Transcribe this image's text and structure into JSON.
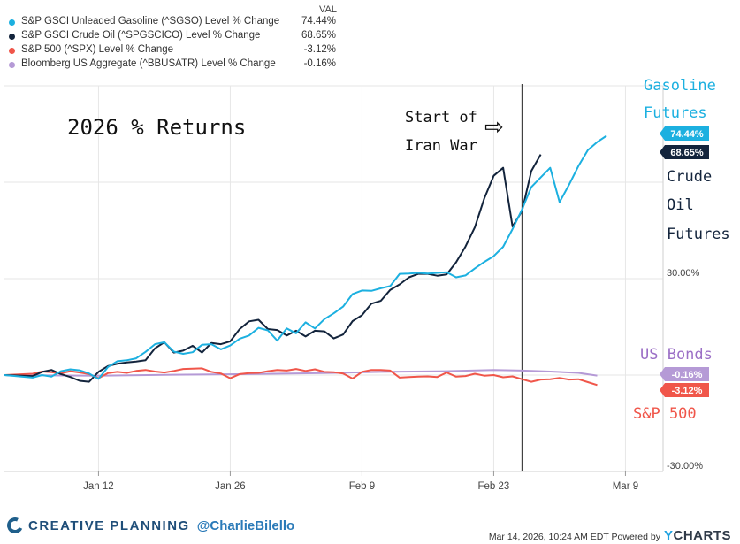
{
  "legend": {
    "header": "VAL",
    "items": [
      {
        "name": "S&P GSCI Unleaded Gasoline (^SGSO) Level % Change",
        "value": "74.44%",
        "color": "#1cb0e0"
      },
      {
        "name": "S&P GSCI Crude Oil (^SPGSCICO) Level % Change",
        "value": "68.65%",
        "color": "#13243c"
      },
      {
        "name": "S&P 500 (^SPX) Level % Change",
        "value": "-3.12%",
        "color": "#f0564a"
      },
      {
        "name": "Bloomberg US Aggregate (^BBUSATR) Level % Change",
        "value": "-0.16%",
        "color": "#b59ad6"
      }
    ]
  },
  "annotations": {
    "title": "2026 % Returns",
    "war_line1": "Start of",
    "war_line2": "Iran War",
    "arrow": "⇨",
    "gas_line1": "Gasoline",
    "gas_line2": "Futures",
    "crude_line1": "Crude",
    "crude_line2": "Oil",
    "crude_line3": "Futures",
    "bonds": "US Bonds",
    "sp": "S&P 500"
  },
  "footer": {
    "brand": "CREATIVE PLANNING",
    "handle": "@CharlieBilello",
    "source": "Mar 14, 2026, 10:24 AM EDT Powered by",
    "ycharts_y": "Y",
    "ycharts_rest": "CHARTS"
  },
  "chart_data": {
    "type": "line",
    "x_start": "2026-01-02",
    "x_end": "2026-03-13",
    "xlim": [
      "2026-01-02",
      "2026-03-13"
    ],
    "ylim": [
      -30,
      90
    ],
    "yticks": [
      -30,
      30
    ],
    "ytick_labels": [
      "-30.00%",
      "30.00%"
    ],
    "y_unit": "%",
    "xtick_labels": [
      "Jan 12",
      "Jan 26",
      "Feb 9",
      "Feb 23",
      "Mar 9"
    ],
    "xtick_dates": [
      "2026-01-12",
      "2026-01-26",
      "2026-02-09",
      "2026-02-23",
      "2026-03-09"
    ],
    "grid": true,
    "event_marker": {
      "date": "2026-02-26",
      "label": "Start of Iran War"
    },
    "series": [
      {
        "name": "S&P GSCI Unleaded Gasoline (^SGSO) Level % Change",
        "color": "#1cb0e0",
        "last_label": "74.44%",
        "last": 74.44,
        "points": [
          [
            "2026-01-02",
            0
          ],
          [
            "2026-01-05",
            -0.8
          ],
          [
            "2026-01-06",
            0
          ],
          [
            "2026-01-07",
            -0.5
          ],
          [
            "2026-01-08",
            1.2
          ],
          [
            "2026-01-09",
            1.8
          ],
          [
            "2026-01-10",
            1.5
          ],
          [
            "2026-01-11",
            0.5
          ],
          [
            "2026-01-12",
            -1.2
          ],
          [
            "2026-01-13",
            2.5
          ],
          [
            "2026-01-14",
            4.3
          ],
          [
            "2026-01-15",
            4.6
          ],
          [
            "2026-01-16",
            5.2
          ],
          [
            "2026-01-17",
            7.2
          ],
          [
            "2026-01-18",
            9.6
          ],
          [
            "2026-01-19",
            10.2
          ],
          [
            "2026-01-20",
            7.3
          ],
          [
            "2026-01-21",
            6.6
          ],
          [
            "2026-01-22",
            7.1
          ],
          [
            "2026-01-23",
            9.4
          ],
          [
            "2026-01-24",
            9.6
          ],
          [
            "2026-01-25",
            8.0
          ],
          [
            "2026-01-26",
            9.2
          ],
          [
            "2026-01-27",
            11.3
          ],
          [
            "2026-01-28",
            12.3
          ],
          [
            "2026-01-29",
            14.7
          ],
          [
            "2026-01-30",
            13.9
          ],
          [
            "2026-01-31",
            10.7
          ],
          [
            "2026-02-01",
            14.5
          ],
          [
            "2026-02-02",
            13.0
          ],
          [
            "2026-02-03",
            16.4
          ],
          [
            "2026-02-04",
            14.5
          ],
          [
            "2026-02-05",
            17.4
          ],
          [
            "2026-02-06",
            19.2
          ],
          [
            "2026-02-07",
            21.3
          ],
          [
            "2026-02-08",
            25.2
          ],
          [
            "2026-02-09",
            26.3
          ],
          [
            "2026-02-10",
            26.2
          ],
          [
            "2026-02-11",
            27.0
          ],
          [
            "2026-02-12",
            27.7
          ],
          [
            "2026-02-13",
            31.5
          ],
          [
            "2026-02-14",
            31.6
          ],
          [
            "2026-02-15",
            31.8
          ],
          [
            "2026-02-16",
            31.6
          ],
          [
            "2026-02-17",
            31.8
          ],
          [
            "2026-02-18",
            32.0
          ],
          [
            "2026-02-19",
            30.4
          ],
          [
            "2026-02-20",
            31.0
          ],
          [
            "2026-02-21",
            33.2
          ],
          [
            "2026-02-22",
            35.2
          ],
          [
            "2026-02-23",
            37.0
          ],
          [
            "2026-02-24",
            39.9
          ],
          [
            "2026-02-25",
            45.4
          ],
          [
            "2026-02-26",
            51.5
          ],
          [
            "2026-02-27",
            58.5
          ],
          [
            "2026-02-28",
            61.5
          ],
          [
            "2026-03-01",
            64.5
          ],
          [
            "2026-03-02",
            53.8
          ],
          [
            "2026-03-03",
            59.2
          ],
          [
            "2026-03-04",
            65.0
          ],
          [
            "2026-03-05",
            70.0
          ],
          [
            "2026-03-06",
            72.5
          ],
          [
            "2026-03-07",
            74.44
          ]
        ]
      },
      {
        "name": "S&P GSCI Crude Oil (^SPGSCICO) Level % Change",
        "color": "#13243c",
        "last_label": "68.65%",
        "last": 68.65,
        "points": [
          [
            "2026-01-02",
            0
          ],
          [
            "2026-01-05",
            -0.3
          ],
          [
            "2026-01-06",
            1.0
          ],
          [
            "2026-01-07",
            1.6
          ],
          [
            "2026-01-08",
            0.3
          ],
          [
            "2026-01-09",
            -0.6
          ],
          [
            "2026-01-10",
            -1.8
          ],
          [
            "2026-01-11",
            -2.1
          ],
          [
            "2026-01-12",
            1.0
          ],
          [
            "2026-01-13",
            2.8
          ],
          [
            "2026-01-14",
            3.5
          ],
          [
            "2026-01-15",
            3.9
          ],
          [
            "2026-01-16",
            4.2
          ],
          [
            "2026-01-17",
            4.6
          ],
          [
            "2026-01-18",
            8.3
          ],
          [
            "2026-01-19",
            10.2
          ],
          [
            "2026-01-20",
            7.0
          ],
          [
            "2026-01-21",
            7.6
          ],
          [
            "2026-01-22",
            9.1
          ],
          [
            "2026-01-23",
            7.0
          ],
          [
            "2026-01-24",
            10.0
          ],
          [
            "2026-01-25",
            9.6
          ],
          [
            "2026-01-26",
            10.5
          ],
          [
            "2026-01-27",
            14.3
          ],
          [
            "2026-01-28",
            16.7
          ],
          [
            "2026-01-29",
            17.2
          ],
          [
            "2026-01-30",
            14.3
          ],
          [
            "2026-01-31",
            14.0
          ],
          [
            "2026-02-01",
            12.3
          ],
          [
            "2026-02-02",
            13.8
          ],
          [
            "2026-02-03",
            12.0
          ],
          [
            "2026-02-04",
            13.8
          ],
          [
            "2026-02-05",
            13.6
          ],
          [
            "2026-02-06",
            11.4
          ],
          [
            "2026-02-07",
            12.6
          ],
          [
            "2026-02-08",
            16.8
          ],
          [
            "2026-02-09",
            18.6
          ],
          [
            "2026-02-10",
            22.2
          ],
          [
            "2026-02-11",
            23.1
          ],
          [
            "2026-02-12",
            26.5
          ],
          [
            "2026-02-13",
            28.2
          ],
          [
            "2026-02-14",
            30.4
          ],
          [
            "2026-02-15",
            31.5
          ],
          [
            "2026-02-16",
            31.5
          ],
          [
            "2026-02-17",
            30.9
          ],
          [
            "2026-02-18",
            31.3
          ],
          [
            "2026-02-19",
            35.1
          ],
          [
            "2026-02-20",
            40.0
          ],
          [
            "2026-02-21",
            46.0
          ],
          [
            "2026-02-22",
            55.0
          ],
          [
            "2026-02-23",
            62.0
          ],
          [
            "2026-02-24",
            64.5
          ],
          [
            "2026-02-25",
            46.2
          ],
          [
            "2026-02-26",
            51.0
          ],
          [
            "2026-02-27",
            63.5
          ],
          [
            "2026-02-28",
            68.65
          ]
        ]
      },
      {
        "name": "S&P 500 (^SPX) Level % Change",
        "color": "#f0564a",
        "last_label": "-3.12%",
        "last": -3.12,
        "points": [
          [
            "2026-01-02",
            0
          ],
          [
            "2026-01-05",
            0.4
          ],
          [
            "2026-01-06",
            1.1
          ],
          [
            "2026-01-07",
            0.9
          ],
          [
            "2026-01-08",
            0.5
          ],
          [
            "2026-01-09",
            1.2
          ],
          [
            "2026-01-10",
            0.8
          ],
          [
            "2026-01-11",
            0.3
          ],
          [
            "2026-01-12",
            -1.0
          ],
          [
            "2026-01-13",
            0.6
          ],
          [
            "2026-01-14",
            1.0
          ],
          [
            "2026-01-15",
            0.7
          ],
          [
            "2026-01-16",
            1.3
          ],
          [
            "2026-01-17",
            1.6
          ],
          [
            "2026-01-18",
            1.1
          ],
          [
            "2026-01-19",
            0.8
          ],
          [
            "2026-01-20",
            1.3
          ],
          [
            "2026-01-21",
            1.9
          ],
          [
            "2026-01-22",
            2.0
          ],
          [
            "2026-01-23",
            2.1
          ],
          [
            "2026-01-24",
            1.0
          ],
          [
            "2026-01-25",
            0.5
          ],
          [
            "2026-01-26",
            -1.0
          ],
          [
            "2026-01-27",
            0.3
          ],
          [
            "2026-01-28",
            0.6
          ],
          [
            "2026-01-29",
            0.7
          ],
          [
            "2026-01-30",
            1.2
          ],
          [
            "2026-01-31",
            1.6
          ],
          [
            "2026-02-01",
            1.4
          ],
          [
            "2026-02-02",
            1.9
          ],
          [
            "2026-02-03",
            1.3
          ],
          [
            "2026-02-04",
            1.8
          ],
          [
            "2026-02-05",
            1.0
          ],
          [
            "2026-02-06",
            0.9
          ],
          [
            "2026-02-07",
            0.5
          ],
          [
            "2026-02-08",
            -1.1
          ],
          [
            "2026-02-09",
            1.0
          ],
          [
            "2026-02-10",
            1.6
          ],
          [
            "2026-02-11",
            1.6
          ],
          [
            "2026-02-12",
            1.4
          ],
          [
            "2026-02-13",
            -0.8
          ],
          [
            "2026-02-14",
            -0.6
          ],
          [
            "2026-02-15",
            -0.5
          ],
          [
            "2026-02-16",
            -0.4
          ],
          [
            "2026-02-17",
            -0.6
          ],
          [
            "2026-02-18",
            0.8
          ],
          [
            "2026-02-19",
            -0.5
          ],
          [
            "2026-02-20",
            -0.3
          ],
          [
            "2026-02-21",
            0.4
          ],
          [
            "2026-02-22",
            -0.2
          ],
          [
            "2026-02-23",
            0.0
          ],
          [
            "2026-02-24",
            -0.7
          ],
          [
            "2026-02-25",
            -0.4
          ],
          [
            "2026-02-26",
            -1.3
          ],
          [
            "2026-02-27",
            -2.1
          ],
          [
            "2026-02-28",
            -1.4
          ],
          [
            "2026-03-01",
            -1.3
          ],
          [
            "2026-03-02",
            -0.9
          ],
          [
            "2026-03-03",
            -1.4
          ],
          [
            "2026-03-04",
            -1.3
          ],
          [
            "2026-03-05",
            -2.2
          ],
          [
            "2026-03-06",
            -3.12
          ]
        ]
      },
      {
        "name": "Bloomberg US Aggregate (^BBUSATR) Level % Change",
        "color": "#b59ad6",
        "last_label": "-0.16%",
        "last": -0.16,
        "points": [
          [
            "2026-01-02",
            0
          ],
          [
            "2026-01-12",
            -0.2
          ],
          [
            "2026-01-20",
            0.1
          ],
          [
            "2026-01-28",
            0.3
          ],
          [
            "2026-02-05",
            0.6
          ],
          [
            "2026-02-11",
            1.0
          ],
          [
            "2026-02-18",
            1.2
          ],
          [
            "2026-02-23",
            1.6
          ],
          [
            "2026-02-26",
            1.4
          ],
          [
            "2026-03-01",
            1.1
          ],
          [
            "2026-03-04",
            0.7
          ],
          [
            "2026-03-06",
            -0.16
          ]
        ]
      }
    ]
  }
}
